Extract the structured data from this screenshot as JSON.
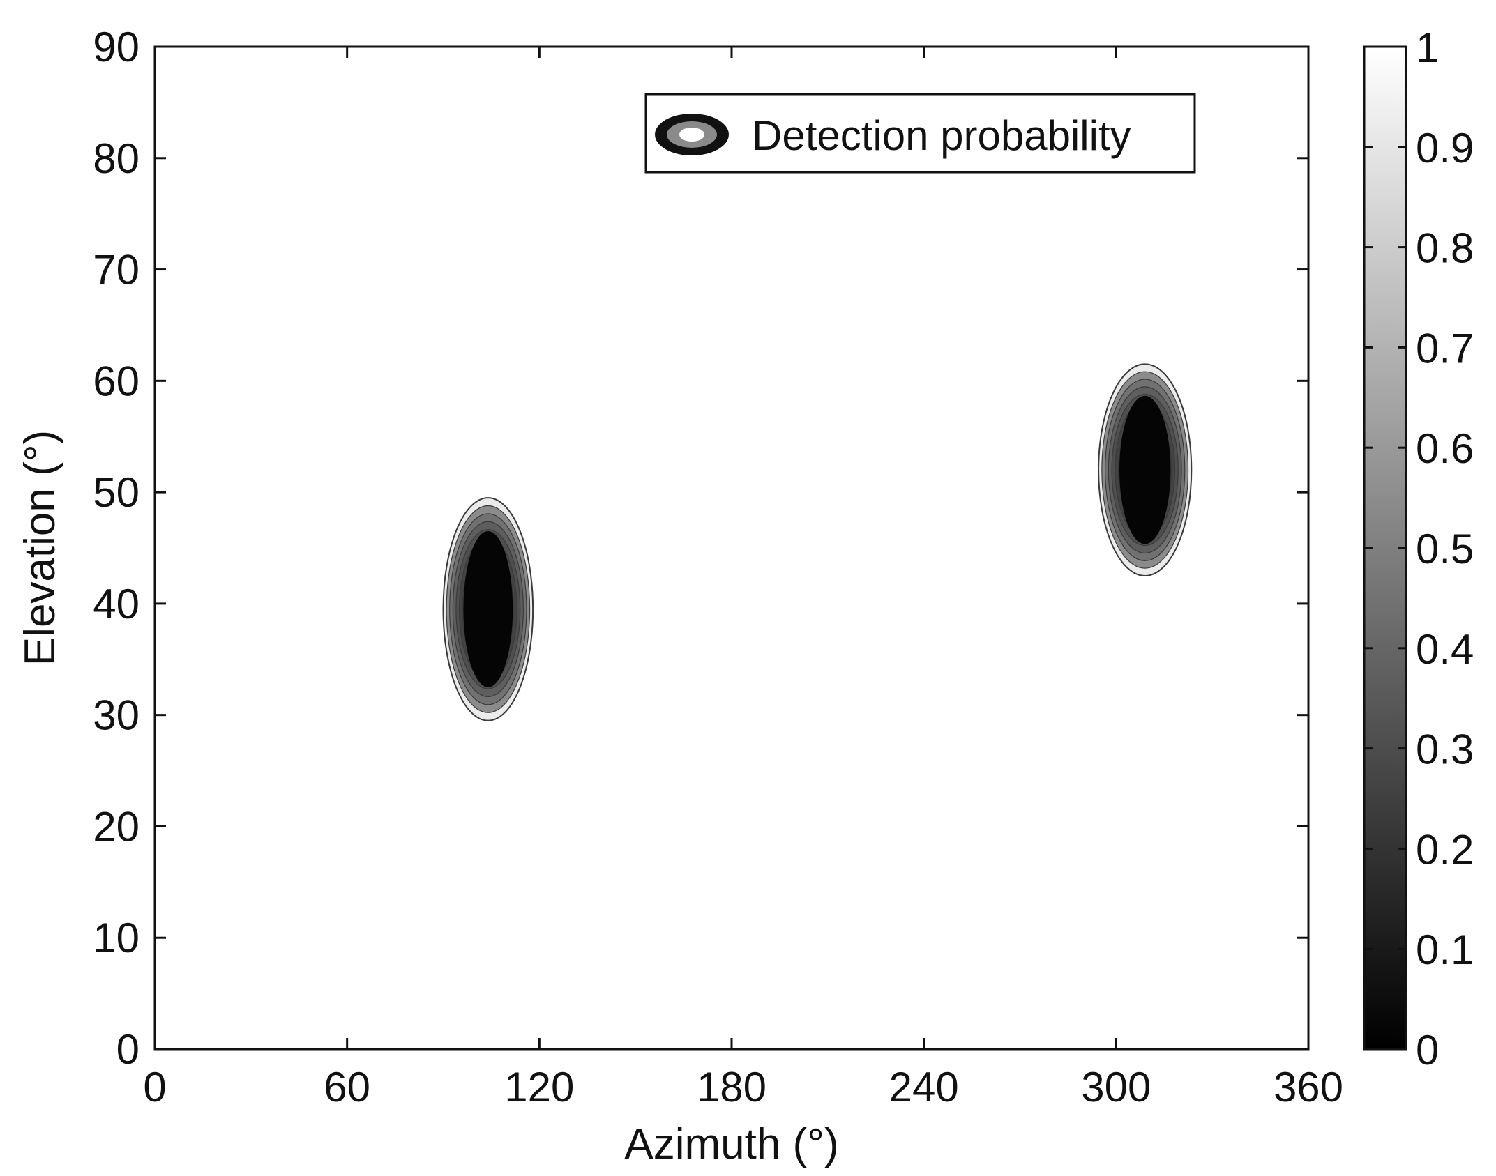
{
  "chart_data": {
    "type": "contour",
    "xlabel": "Azimuth (°)",
    "ylabel": "Elevation (°)",
    "xlim": [
      0,
      360
    ],
    "ylim": [
      0,
      90
    ],
    "x_ticks": [
      0,
      60,
      120,
      180,
      240,
      300,
      360
    ],
    "y_ticks": [
      0,
      10,
      20,
      30,
      40,
      50,
      60,
      70,
      80,
      90
    ],
    "legend": {
      "label": "Detection probability",
      "position": "top-right"
    },
    "colorbar": {
      "range": [
        0,
        1
      ],
      "ticks": [
        0,
        0.1,
        0.2,
        0.3,
        0.4,
        0.5,
        0.6,
        0.7,
        0.8,
        0.9,
        1
      ],
      "tick_labels": [
        "0",
        "0.1",
        "0.2",
        "0.3",
        "0.4",
        "0.5",
        "0.6",
        "0.7",
        "0.8",
        "0.9",
        "1"
      ],
      "colormap": "gray",
      "low_color": "#000000",
      "high_color": "#ffffff"
    },
    "background_value": 1,
    "regions": [
      {
        "center_azimuth": 104,
        "center_elevation": 39.5,
        "azimuth_extent": [
          90,
          118
        ],
        "elevation_extent": [
          29.5,
          49.5
        ],
        "min_value": 0
      },
      {
        "center_azimuth": 309,
        "center_elevation": 52,
        "azimuth_extent": [
          295,
          324
        ],
        "elevation_extent": [
          42,
          61
        ],
        "min_value": 0
      }
    ],
    "grid": false
  }
}
